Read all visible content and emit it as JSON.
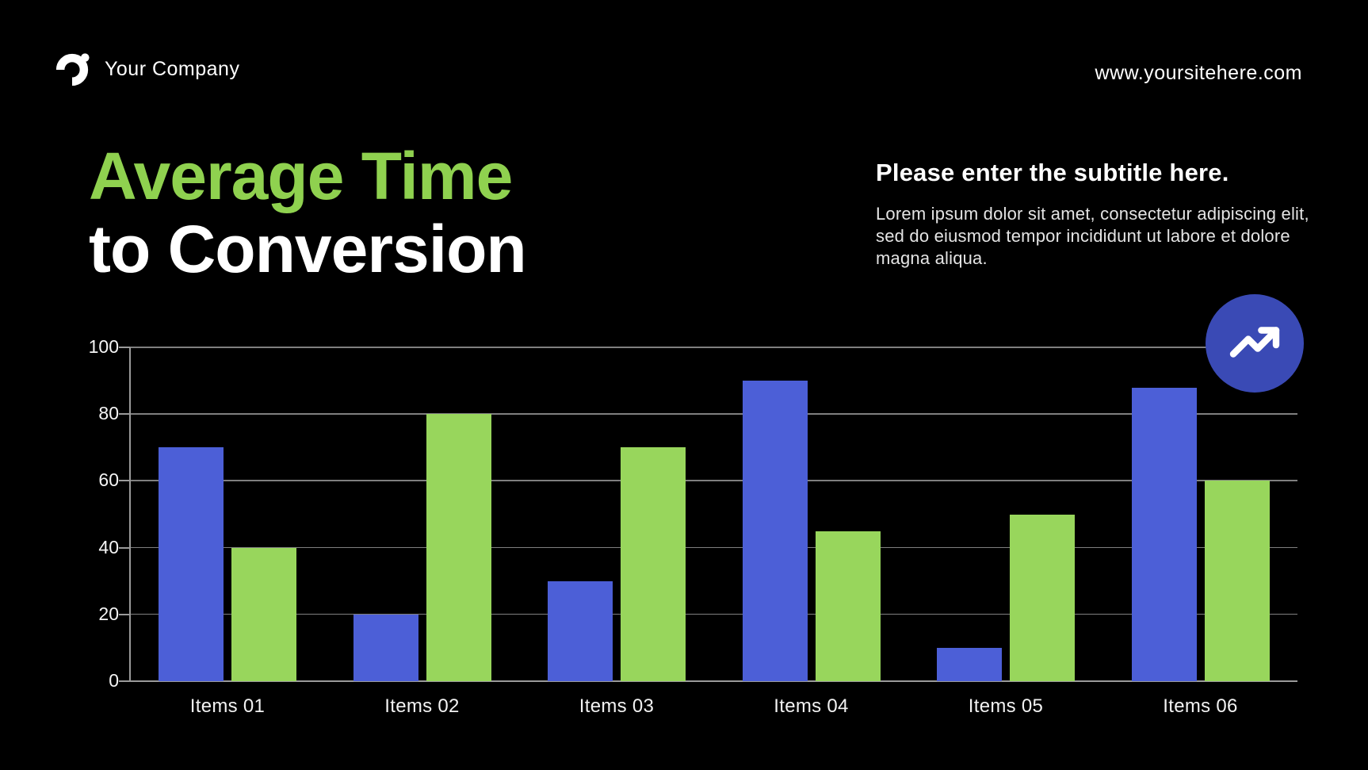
{
  "header": {
    "company": "Your Company",
    "website": "www.yoursitehere.com"
  },
  "title": {
    "line1": "Average Time",
    "line2": "to Conversion"
  },
  "subtitle": {
    "heading": "Please enter the subtitle here.",
    "body_lines": [
      "Lorem ipsum dolor sit amet, consectetur adipiscing elit,",
      "sed do eiusmod tempor incididunt ut labore et dolore",
      "magna aliqua."
    ]
  },
  "colors": {
    "background": "#000000",
    "title_green": "#8FD14F",
    "bar_blue": "#4C5FD7",
    "bar_green": "#98D65C",
    "badge_blue": "#3A4AB5",
    "gridline_gray": "#7F7F7F",
    "axis_gray": "#9A9A9A",
    "text_white": "#FFFFFF",
    "text_muted": "#E4E4E4"
  },
  "chart_data": {
    "type": "bar",
    "title": "Average Time to Conversion",
    "categories": [
      "Items 01",
      "Items 02",
      "Items 03",
      "Items 04",
      "Items 05",
      "Items 06"
    ],
    "series": [
      {
        "name": "series-blue",
        "color": "#4C5FD7",
        "values": [
          70,
          20,
          30,
          90,
          10,
          88
        ]
      },
      {
        "name": "series-green",
        "color": "#98D65C",
        "values": [
          40,
          80,
          70,
          45,
          50,
          60
        ]
      }
    ],
    "xlabel": "",
    "ylabel": "",
    "ylim": [
      0,
      100
    ],
    "yticks": [
      0,
      20,
      40,
      60,
      80,
      100
    ],
    "grid": true,
    "legend_position": "none"
  },
  "icons": {
    "logo": "company-logo-swoosh",
    "trend": "trending-up"
  }
}
